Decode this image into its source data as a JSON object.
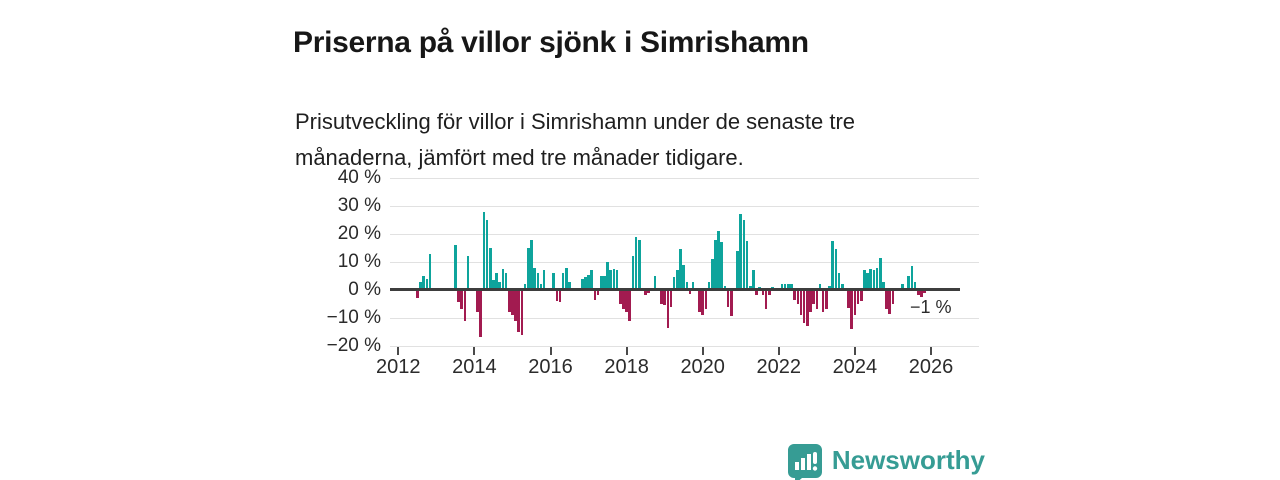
{
  "header": {
    "title": "Priserna på villor sjönk i Simrishamn",
    "subtitle": "Prisutveckling för villor i Simrishamn under de senaste tre månaderna, jämfört med tre månader tidigare."
  },
  "colors": {
    "positive_bar": "#0EA49C",
    "negative_bar": "#A21B50",
    "zero_line": "#3D3D3D",
    "gridline": "#E1E1E1",
    "logo_teal": "#369C94"
  },
  "logo": {
    "text": "Newsworthy",
    "icon": "bar-chart-speech-bubble-icon"
  },
  "chart_data": {
    "type": "bar",
    "title": "",
    "xlabel": "",
    "ylabel": "",
    "unit": "%",
    "frequency": "monthly",
    "grid": "horizontal",
    "ylim": [
      -20,
      40
    ],
    "y_axis": {
      "ticks": [
        "40 %",
        "30 %",
        "20 %",
        "10 %",
        "0 %",
        "−10 %",
        "−20 %"
      ],
      "values": [
        40,
        30,
        20,
        10,
        0,
        -10,
        -20
      ]
    },
    "x_axis": {
      "ticks": [
        "2012",
        "2014",
        "2016",
        "2018",
        "2020",
        "2022",
        "2024",
        "2026"
      ]
    },
    "annotation": {
      "label": "−1 %",
      "attached_to": "2025-11"
    },
    "series": [
      {
        "name": "Prisutveckling villor Simrishamn, 3 mån jämfört med 3 mån tidigare (%)",
        "points": [
          [
            "2012-07",
            -3
          ],
          [
            "2012-08",
            3
          ],
          [
            "2012-09",
            5
          ],
          [
            "2012-10",
            4
          ],
          [
            "2012-11",
            13
          ],
          [
            "2012-12",
            0
          ],
          [
            "2013-01",
            0
          ],
          [
            "2013-02",
            0
          ],
          [
            "2013-03",
            0
          ],
          [
            "2013-04",
            0
          ],
          [
            "2013-05",
            0
          ],
          [
            "2013-06",
            0
          ],
          [
            "2013-07",
            16
          ],
          [
            "2013-08",
            -4.5
          ],
          [
            "2013-09",
            -7
          ],
          [
            "2013-10",
            -11
          ],
          [
            "2013-11",
            12
          ],
          [
            "2013-12",
            0
          ],
          [
            "2014-01",
            0
          ],
          [
            "2014-02",
            -8
          ],
          [
            "2014-03",
            -17
          ],
          [
            "2014-04",
            28
          ],
          [
            "2014-05",
            25
          ],
          [
            "2014-06",
            15
          ],
          [
            "2014-07",
            3.5
          ],
          [
            "2014-08",
            6
          ],
          [
            "2014-09",
            3
          ],
          [
            "2014-10",
            7.5
          ],
          [
            "2014-11",
            6
          ],
          [
            "2014-12",
            -8
          ],
          [
            "2015-01",
            -9
          ],
          [
            "2015-02",
            -11
          ],
          [
            "2015-03",
            -15
          ],
          [
            "2015-04",
            -16
          ],
          [
            "2015-05",
            2
          ],
          [
            "2015-06",
            15
          ],
          [
            "2015-07",
            18
          ],
          [
            "2015-08",
            8
          ],
          [
            "2015-09",
            6
          ],
          [
            "2015-10",
            2
          ],
          [
            "2015-11",
            7
          ],
          [
            "2015-12",
            0
          ],
          [
            "2016-01",
            0
          ],
          [
            "2016-02",
            6
          ],
          [
            "2016-03",
            -4
          ],
          [
            "2016-04",
            -4.5
          ],
          [
            "2016-05",
            6
          ],
          [
            "2016-06",
            8
          ],
          [
            "2016-07",
            3
          ],
          [
            "2016-08",
            0
          ],
          [
            "2016-09",
            0
          ],
          [
            "2016-10",
            0
          ],
          [
            "2016-11",
            4
          ],
          [
            "2016-12",
            4.5
          ],
          [
            "2017-01",
            5.5
          ],
          [
            "2017-02",
            7
          ],
          [
            "2017-03",
            -3.5
          ],
          [
            "2017-04",
            -2
          ],
          [
            "2017-05",
            5
          ],
          [
            "2017-06",
            5
          ],
          [
            "2017-07",
            10
          ],
          [
            "2017-08",
            7
          ],
          [
            "2017-09",
            7.5
          ],
          [
            "2017-10",
            7
          ],
          [
            "2017-11",
            -5
          ],
          [
            "2017-12",
            -7
          ],
          [
            "2018-01",
            -8
          ],
          [
            "2018-02",
            -11
          ],
          [
            "2018-03",
            12
          ],
          [
            "2018-04",
            19
          ],
          [
            "2018-05",
            18
          ],
          [
            "2018-06",
            0
          ],
          [
            "2018-07",
            -2
          ],
          [
            "2018-08",
            -1
          ],
          [
            "2018-09",
            0
          ],
          [
            "2018-10",
            5
          ],
          [
            "2018-11",
            0
          ],
          [
            "2018-12",
            -5
          ],
          [
            "2019-01",
            -5.5
          ],
          [
            "2019-02",
            -13.5
          ],
          [
            "2019-03",
            -6
          ],
          [
            "2019-04",
            4.5
          ],
          [
            "2019-05",
            7
          ],
          [
            "2019-06",
            14.5
          ],
          [
            "2019-07",
            9
          ],
          [
            "2019-08",
            3
          ],
          [
            "2019-09",
            -1.5
          ],
          [
            "2019-10",
            3
          ],
          [
            "2019-11",
            0
          ],
          [
            "2019-12",
            -8
          ],
          [
            "2020-01",
            -9
          ],
          [
            "2020-02",
            -7
          ],
          [
            "2020-03",
            3
          ],
          [
            "2020-04",
            11
          ],
          [
            "2020-05",
            18
          ],
          [
            "2020-06",
            21
          ],
          [
            "2020-07",
            17
          ],
          [
            "2020-08",
            1.5
          ],
          [
            "2020-09",
            -6
          ],
          [
            "2020-10",
            -9.5
          ],
          [
            "2020-11",
            0
          ],
          [
            "2020-12",
            14
          ],
          [
            "2021-01",
            27
          ],
          [
            "2021-02",
            25
          ],
          [
            "2021-03",
            17.5
          ],
          [
            "2021-04",
            1.5
          ],
          [
            "2021-05",
            7
          ],
          [
            "2021-06",
            -2
          ],
          [
            "2021-07",
            1
          ],
          [
            "2021-08",
            -2
          ],
          [
            "2021-09",
            -7
          ],
          [
            "2021-10",
            -2
          ],
          [
            "2021-11",
            1
          ],
          [
            "2021-12",
            0
          ],
          [
            "2022-01",
            0
          ],
          [
            "2022-02",
            2
          ],
          [
            "2022-03",
            2
          ],
          [
            "2022-04",
            2
          ],
          [
            "2022-05",
            2
          ],
          [
            "2022-06",
            -3.5
          ],
          [
            "2022-07",
            -5
          ],
          [
            "2022-08",
            -9
          ],
          [
            "2022-09",
            -12
          ],
          [
            "2022-10",
            -13
          ],
          [
            "2022-11",
            -8
          ],
          [
            "2022-12",
            -5
          ],
          [
            "2023-01",
            -7
          ],
          [
            "2023-02",
            2
          ],
          [
            "2023-03",
            -8
          ],
          [
            "2023-04",
            -7
          ],
          [
            "2023-05",
            1.5
          ],
          [
            "2023-06",
            17.5
          ],
          [
            "2023-07",
            14.5
          ],
          [
            "2023-08",
            6
          ],
          [
            "2023-09",
            2
          ],
          [
            "2023-10",
            0
          ],
          [
            "2023-11",
            -6.5
          ],
          [
            "2023-12",
            -14
          ],
          [
            "2024-01",
            -9
          ],
          [
            "2024-02",
            -5
          ],
          [
            "2024-03",
            -4
          ],
          [
            "2024-04",
            7
          ],
          [
            "2024-05",
            6
          ],
          [
            "2024-06",
            7.5
          ],
          [
            "2024-07",
            7
          ],
          [
            "2024-08",
            8
          ],
          [
            "2024-09",
            11.5
          ],
          [
            "2024-10",
            3
          ],
          [
            "2024-11",
            -7
          ],
          [
            "2024-12",
            -8.5
          ],
          [
            "2025-01",
            -5
          ],
          [
            "2025-02",
            0
          ],
          [
            "2025-03",
            0
          ],
          [
            "2025-04",
            2
          ],
          [
            "2025-05",
            0
          ],
          [
            "2025-06",
            5
          ],
          [
            "2025-07",
            8.5
          ],
          [
            "2025-08",
            3
          ],
          [
            "2025-09",
            -2
          ],
          [
            "2025-10",
            -2.5
          ],
          [
            "2025-11",
            -1
          ]
        ]
      }
    ]
  }
}
